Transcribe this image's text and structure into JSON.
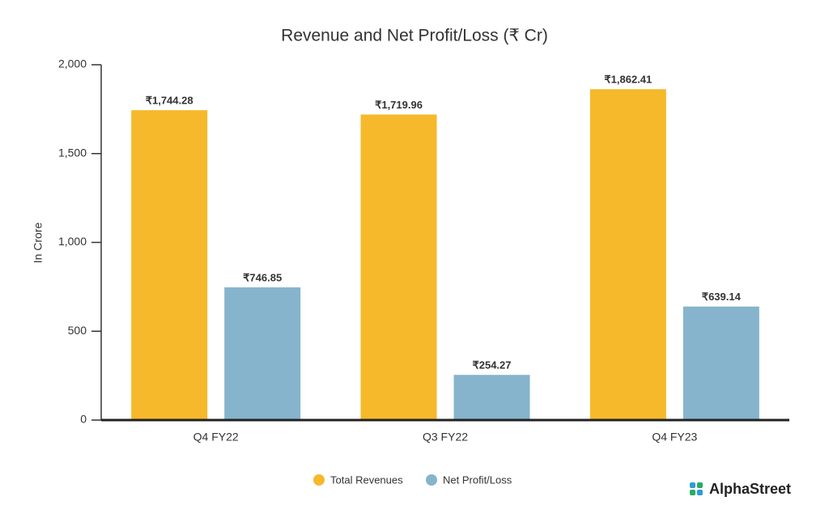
{
  "chart_data": {
    "type": "bar",
    "title": "Revenue and Net Profit/Loss (₹ Cr)",
    "y_label": "In Crore",
    "categories": [
      "Q4 FY22",
      "Q3 FY22",
      "Q4 FY23"
    ],
    "series": [
      {
        "name": "Total Revenues",
        "color": "#f6b92b",
        "values": [
          1744.28,
          1719.96,
          1862.41
        ],
        "value_labels": [
          "₹1,744.28",
          "₹1,719.96",
          "₹1,862.41"
        ]
      },
      {
        "name": "Net Profit/Loss",
        "color": "#86b4cc",
        "values": [
          746.85,
          254.27,
          639.14
        ],
        "value_labels": [
          "₹746.85",
          "₹254.27",
          "₹639.14"
        ]
      }
    ],
    "ylim": [
      0,
      2000
    ],
    "yticks": [
      0,
      500,
      {
        "value": 1000,
        "label": "1,000"
      },
      {
        "value": 1500,
        "label": "1,500"
      },
      {
        "value": 2000,
        "label": "2,000"
      }
    ],
    "grid": false,
    "legend": "bottom",
    "brand": "AlphaStreet"
  }
}
